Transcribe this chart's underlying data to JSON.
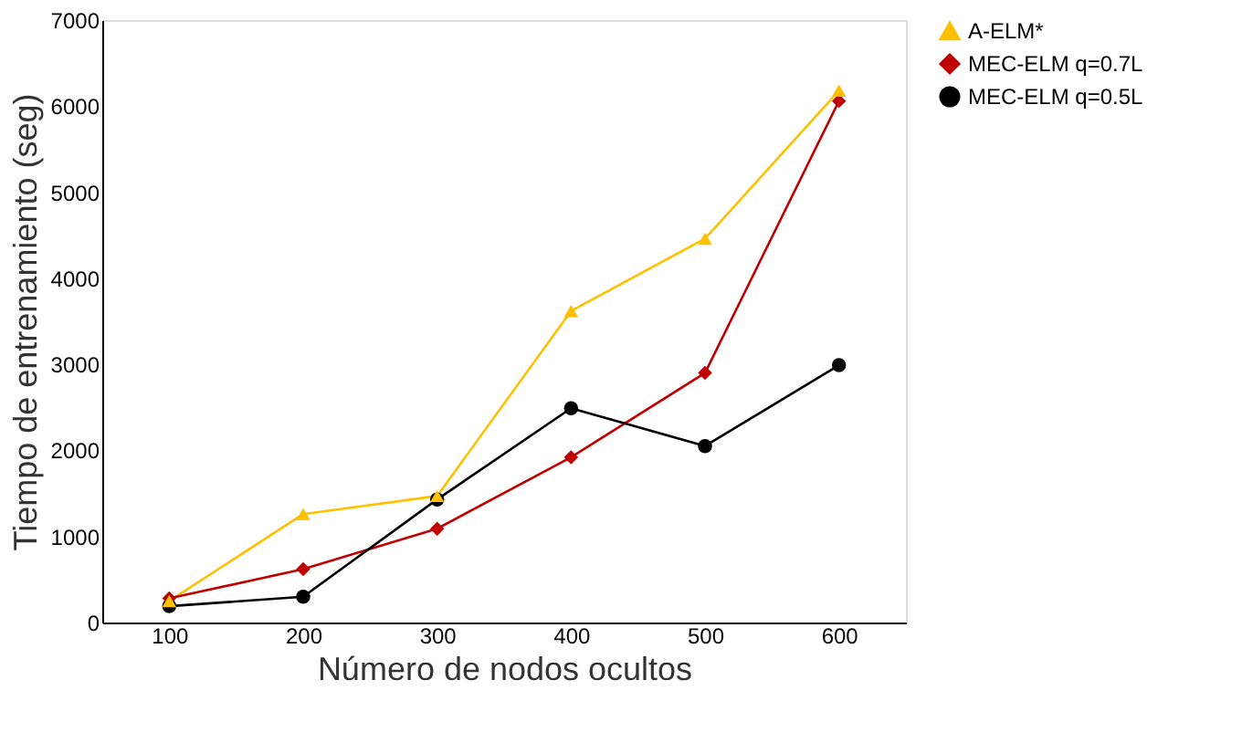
{
  "chart_data": {
    "type": "line",
    "xlabel": "Número de nodos ocultos",
    "ylabel": "Tiempo de entrenamiento (seg)",
    "categories": [
      "100",
      "200",
      "300",
      "400",
      "500",
      "600"
    ],
    "series": [
      {
        "name": "A-ELM*",
        "color": "#ffc000",
        "marker": "triangle",
        "values": [
          250,
          1260,
          1470,
          3620,
          4460,
          6180
        ]
      },
      {
        "name": "MEC-ELM  q=0.7L",
        "color": "#c00000",
        "marker": "diamond",
        "values": [
          280,
          620,
          1090,
          1920,
          2900,
          6060
        ]
      },
      {
        "name": "MEC-ELM  q=0.5L",
        "color": "#000000",
        "marker": "circle",
        "values": [
          190,
          300,
          1430,
          2490,
          2050,
          2990
        ]
      }
    ],
    "ylim": [
      0,
      7000
    ],
    "yticks": [
      0,
      1000,
      2000,
      3000,
      4000,
      5000,
      6000,
      7000
    ],
    "grid": false,
    "legend": "right"
  }
}
